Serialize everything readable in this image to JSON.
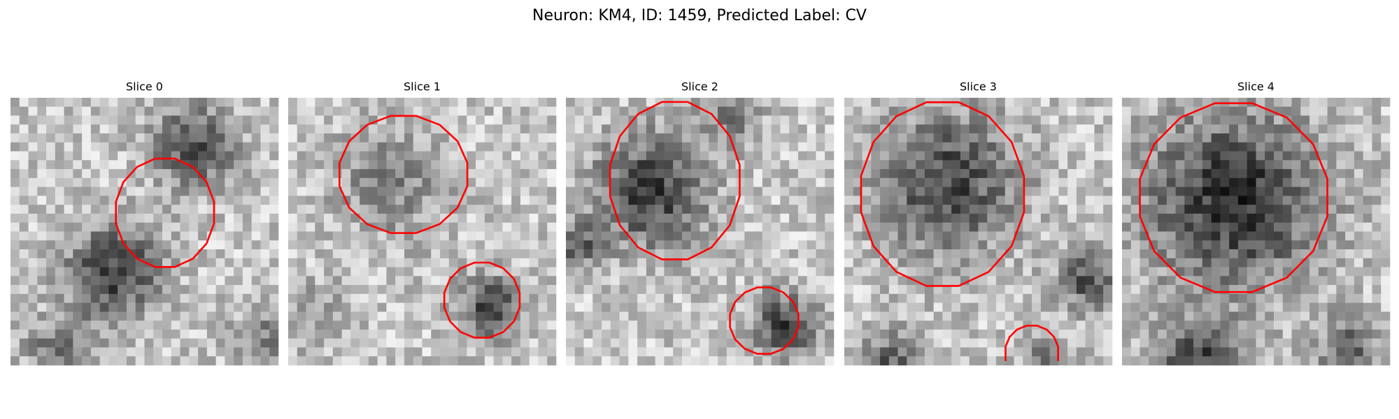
{
  "figure": {
    "title": "Neuron: KM4, ID: 1459, Predicted Label: CV",
    "panels": [
      {
        "title": "Slice 0"
      },
      {
        "title": "Slice 1"
      },
      {
        "title": "Slice 2"
      },
      {
        "title": "Slice 3"
      },
      {
        "title": "Slice 4"
      }
    ]
  }
}
